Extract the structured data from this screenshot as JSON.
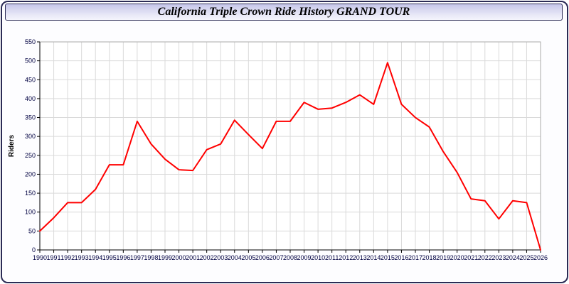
{
  "title": "California Triple Crown Ride History GRAND TOUR",
  "chart_data": {
    "type": "line",
    "title": "California Triple Crown Ride History GRAND TOUR",
    "xlabel": "",
    "ylabel": "Riders",
    "ylim": [
      0,
      550
    ],
    "ytick_step": 50,
    "grid": true,
    "legend_position": "none",
    "line_color": "#ff0000",
    "grid_color": "#dadada",
    "axis_color": "#000000",
    "tick_label_color": "#000041",
    "plot_background": "#ffffff",
    "x": [
      "1990",
      "1991",
      "1992",
      "1993",
      "1994",
      "1995",
      "1996",
      "1997",
      "1998",
      "1999",
      "2000",
      "2001",
      "2002",
      "2003",
      "2004",
      "2005",
      "2006",
      "2007",
      "2008",
      "2009",
      "2010",
      "2011",
      "2012",
      "2013",
      "2014",
      "2015",
      "2016",
      "2017",
      "2018",
      "2019",
      "2020",
      "2021",
      "2022",
      "2023",
      "2024",
      "2025",
      "2026"
    ],
    "values": [
      50,
      85,
      125,
      125,
      160,
      225,
      225,
      340,
      280,
      240,
      212,
      210,
      265,
      280,
      343,
      305,
      268,
      340,
      340,
      390,
      372,
      375,
      390,
      410,
      385,
      495,
      385,
      350,
      325,
      260,
      205,
      135,
      130,
      82,
      130,
      125,
      0
    ]
  }
}
